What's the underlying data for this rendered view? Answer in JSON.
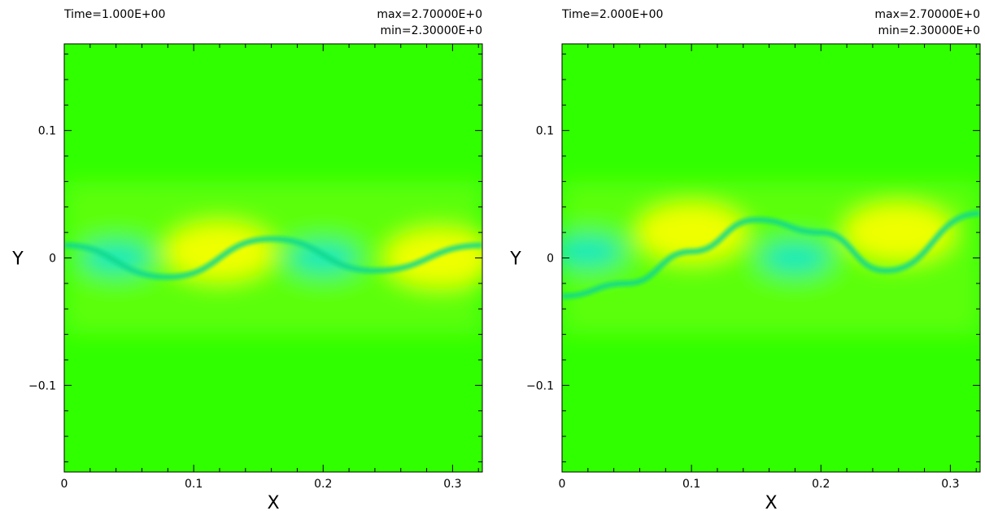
{
  "chart_data": [
    {
      "type": "heatmap",
      "title": "",
      "time_label": "Time=1.000E+00",
      "max_label": "max=2.70000E+0",
      "min_label": "min=2.30000E+0",
      "xlabel": "X",
      "ylabel": "Y",
      "xlim": [
        0,
        0.323
      ],
      "ylim": [
        -0.168,
        0.168
      ],
      "xticks": [
        0,
        0.1,
        0.2,
        0.3
      ],
      "xtick_labels": [
        "0",
        "0.1",
        "0.2",
        "0.3"
      ],
      "yticks": [
        -0.1,
        0,
        0.1
      ],
      "ytick_labels": [
        "−0.1",
        "0",
        "0.1"
      ],
      "colorscale": [
        "#00e8d0",
        "#18f060",
        "#30ff00",
        "#a8ff00",
        "#ffff00"
      ],
      "value_range": [
        2.3,
        2.7
      ],
      "features": {
        "interface": [
          [
            0,
            0.01
          ],
          [
            0.08,
            -0.015
          ],
          [
            0.16,
            0.015
          ],
          [
            0.24,
            -0.01
          ],
          [
            0.323,
            0.01
          ]
        ],
        "low_regions": [
          [
            0.04,
            0.0
          ],
          [
            0.2,
            0.0
          ]
        ],
        "high_regions": [
          [
            0.12,
            0.005
          ],
          [
            0.29,
            0.0
          ]
        ]
      }
    },
    {
      "type": "heatmap",
      "title": "",
      "time_label": "Time=2.000E+00",
      "max_label": "max=2.70000E+0",
      "min_label": "min=2.30000E+0",
      "xlabel": "X",
      "ylabel": "Y",
      "xlim": [
        0,
        0.323
      ],
      "ylim": [
        -0.168,
        0.168
      ],
      "xticks": [
        0,
        0.1,
        0.2,
        0.3
      ],
      "xtick_labels": [
        "0",
        "0.1",
        "0.2",
        "0.3"
      ],
      "yticks": [
        -0.1,
        0,
        0.1
      ],
      "ytick_labels": [
        "−0.1",
        "0",
        "0.1"
      ],
      "colorscale": [
        "#00e8d0",
        "#18f060",
        "#30ff00",
        "#a8ff00",
        "#ffff00"
      ],
      "value_range": [
        2.3,
        2.7
      ],
      "features": {
        "interface": [
          [
            0,
            -0.03
          ],
          [
            0.05,
            -0.02
          ],
          [
            0.1,
            0.005
          ],
          [
            0.15,
            0.03
          ],
          [
            0.2,
            0.02
          ],
          [
            0.25,
            -0.01
          ],
          [
            0.323,
            0.035
          ]
        ],
        "low_regions": [
          [
            0.02,
            0.005
          ],
          [
            0.18,
            0.0
          ]
        ],
        "high_regions": [
          [
            0.1,
            0.02
          ],
          [
            0.26,
            0.02
          ]
        ]
      }
    }
  ]
}
